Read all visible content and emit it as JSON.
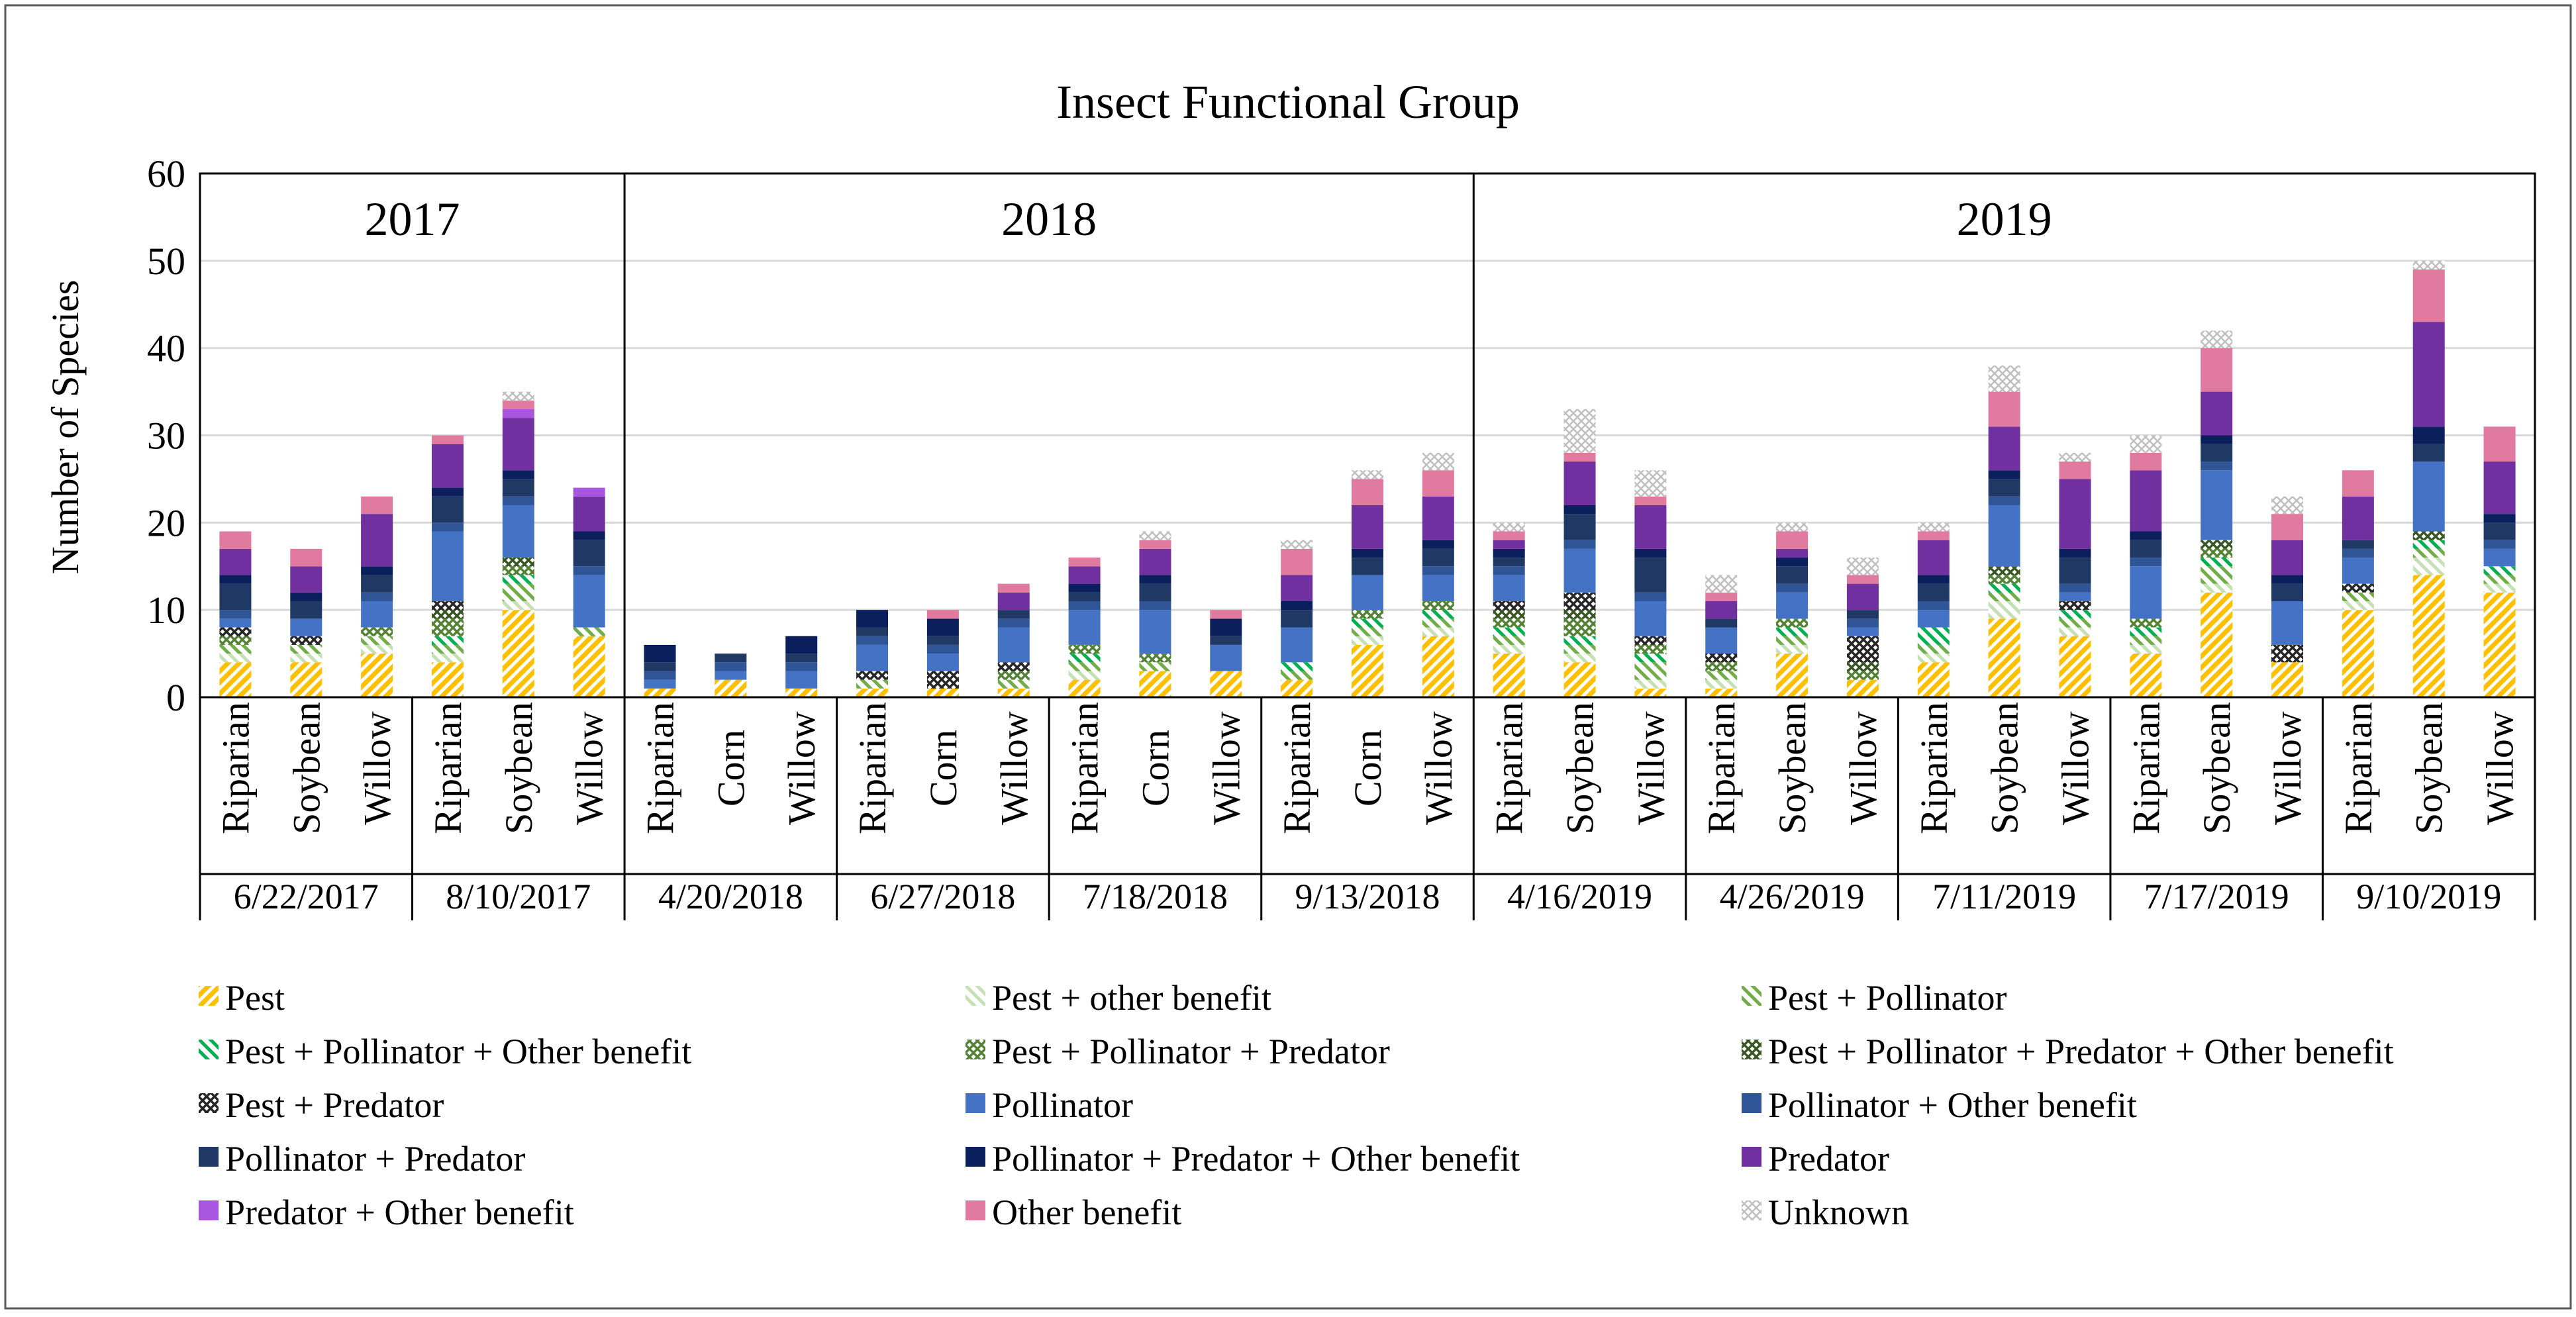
{
  "chart_data": {
    "type": "bar",
    "stacked": true,
    "title": "Insect Functional Group",
    "xlabel": "",
    "ylabel": "Number of Species",
    "ylim": [
      0,
      60
    ],
    "yticks": [
      0,
      10,
      20,
      30,
      40,
      50,
      60
    ],
    "years": [
      {
        "label": "2017",
        "first": 0,
        "last": 5
      },
      {
        "label": "2018",
        "first": 6,
        "last": 17
      },
      {
        "label": "2019",
        "first": 18,
        "last": 32
      }
    ],
    "dates": [
      {
        "label": "6/22/2017",
        "first": 0,
        "last": 2
      },
      {
        "label": "8/10/2017",
        "first": 3,
        "last": 5
      },
      {
        "label": "4/20/2018",
        "first": 6,
        "last": 8
      },
      {
        "label": "6/27/2018",
        "first": 9,
        "last": 11
      },
      {
        "label": "7/18/2018",
        "first": 12,
        "last": 14
      },
      {
        "label": "9/13/2018",
        "first": 15,
        "last": 17
      },
      {
        "label": "4/16/2019",
        "first": 18,
        "last": 20
      },
      {
        "label": "4/26/2019",
        "first": 21,
        "last": 23
      },
      {
        "label": "7/11/2019",
        "first": 24,
        "last": 26
      },
      {
        "label": "7/17/2019",
        "first": 27,
        "last": 29
      },
      {
        "label": "9/10/2019",
        "first": 30,
        "last": 32
      }
    ],
    "categories": [
      "Riparian",
      "Soybean",
      "Willow",
      "Riparian",
      "Soybean",
      "Willow",
      "Riparian",
      "Corn",
      "Willow",
      "Riparian",
      "Corn",
      "Willow",
      "Riparian",
      "Corn",
      "Willow",
      "Riparian",
      "Corn",
      "Willow",
      "Riparian",
      "Soybean",
      "Willow",
      "Riparian",
      "Soybean",
      "Willow",
      "Riparian",
      "Soybean",
      "Willow",
      "Riparian",
      "Soybean",
      "Willow",
      "Riparian",
      "Soybean",
      "Willow"
    ],
    "series": [
      {
        "name": "Pest",
        "color": "#FFC000",
        "pattern": "diag-wide",
        "values": [
          4,
          4,
          5,
          4,
          10,
          7,
          1,
          2,
          1,
          1,
          1,
          1,
          2,
          3,
          3,
          2,
          6,
          7,
          5,
          4,
          1,
          1,
          5,
          2,
          4,
          9,
          7,
          5,
          12,
          4,
          10,
          14,
          12
        ]
      },
      {
        "name": "Pest + other benefit",
        "color": "#C5E0B4",
        "pattern": "diag-fine",
        "values": [
          1,
          1,
          1,
          1,
          1,
          0,
          0,
          0,
          0,
          0,
          0,
          0,
          1,
          0,
          0,
          0,
          1,
          1,
          1,
          1,
          1,
          1,
          1,
          0,
          1,
          2,
          1,
          1,
          1,
          0,
          1,
          2,
          1
        ]
      },
      {
        "name": "Pest + Pollinator",
        "color": "#70AD47",
        "pattern": "diag-fine",
        "values": [
          1,
          1,
          1,
          1,
          2,
          1,
          0,
          0,
          0,
          1,
          0,
          1,
          1,
          1,
          0,
          1,
          1,
          1,
          1,
          1,
          2,
          1,
          1,
          0,
          1,
          1,
          1,
          1,
          2,
          0,
          1,
          1,
          1
        ]
      },
      {
        "name": "Pest + Pollinator + Other benefit",
        "color": "#00B050",
        "pattern": "diag-fine",
        "values": [
          0,
          0,
          0,
          1,
          1,
          0,
          0,
          0,
          0,
          0,
          0,
          0,
          1,
          0,
          0,
          1,
          1,
          1,
          1,
          1,
          1,
          0,
          1,
          0,
          2,
          1,
          1,
          1,
          1,
          0,
          0,
          1,
          1
        ]
      },
      {
        "name": "Pest + Pollinator + Predator",
        "color": "#548235",
        "pattern": "cross",
        "values": [
          1,
          0,
          1,
          2,
          1,
          0,
          0,
          0,
          0,
          0,
          0,
          1,
          1,
          1,
          0,
          0,
          1,
          1,
          1,
          2,
          1,
          1,
          1,
          1,
          0,
          1,
          0,
          1,
          1,
          0,
          0,
          0,
          0
        ]
      },
      {
        "name": "Pest + Pollinator + Predator + Other benefit",
        "color": "#375623",
        "pattern": "cross",
        "values": [
          0,
          0,
          0,
          1,
          1,
          0,
          0,
          0,
          0,
          0,
          0,
          0,
          0,
          0,
          0,
          0,
          0,
          0,
          1,
          1,
          0,
          0,
          0,
          1,
          0,
          1,
          0,
          0,
          1,
          0,
          0,
          1,
          0
        ]
      },
      {
        "name": "Pest + Predator",
        "color": "#262626",
        "pattern": "cross",
        "values": [
          1,
          1,
          0,
          1,
          0,
          0,
          0,
          0,
          0,
          1,
          2,
          1,
          0,
          0,
          0,
          0,
          0,
          0,
          1,
          2,
          1,
          1,
          0,
          3,
          0,
          0,
          1,
          0,
          0,
          2,
          1,
          0,
          0
        ]
      },
      {
        "name": "Pollinator",
        "color": "#4472C4",
        "pattern": "none",
        "values": [
          1,
          2,
          3,
          8,
          6,
          6,
          1,
          1,
          2,
          3,
          2,
          4,
          4,
          5,
          3,
          4,
          4,
          3,
          3,
          5,
          4,
          3,
          3,
          1,
          2,
          7,
          1,
          6,
          8,
          5,
          3,
          8,
          2
        ]
      },
      {
        "name": "Pollinator + Other benefit",
        "color": "#2F5597",
        "pattern": "none",
        "values": [
          1,
          0,
          1,
          1,
          1,
          1,
          1,
          1,
          1,
          1,
          1,
          1,
          1,
          1,
          0,
          0,
          0,
          1,
          1,
          1,
          1,
          0,
          1,
          1,
          1,
          1,
          1,
          1,
          1,
          0,
          1,
          0,
          1
        ]
      },
      {
        "name": "Pollinator + Predator",
        "color": "#203864",
        "pattern": "none",
        "values": [
          3,
          2,
          2,
          3,
          2,
          3,
          1,
          1,
          1,
          1,
          1,
          1,
          1,
          2,
          1,
          2,
          2,
          2,
          1,
          3,
          4,
          1,
          2,
          1,
          2,
          2,
          3,
          2,
          2,
          2,
          1,
          2,
          2
        ]
      },
      {
        "name": "Pollinator + Predator + Other benefit",
        "color": "#0A1F5C",
        "pattern": "none",
        "values": [
          1,
          1,
          1,
          1,
          1,
          1,
          2,
          0,
          2,
          2,
          2,
          0,
          1,
          1,
          2,
          1,
          1,
          1,
          1,
          1,
          1,
          0,
          1,
          0,
          1,
          1,
          1,
          1,
          1,
          1,
          0,
          2,
          1
        ]
      },
      {
        "name": "Predator",
        "color": "#7030A0",
        "pattern": "none",
        "values": [
          3,
          3,
          6,
          5,
          6,
          4,
          0,
          0,
          0,
          0,
          0,
          2,
          2,
          3,
          0,
          3,
          5,
          5,
          1,
          5,
          5,
          2,
          1,
          3,
          4,
          5,
          8,
          7,
          5,
          4,
          5,
          12,
          6
        ]
      },
      {
        "name": "Predator + Other benefit",
        "color": "#A855E0",
        "pattern": "none",
        "values": [
          0,
          0,
          0,
          0,
          1,
          1,
          0,
          0,
          0,
          0,
          0,
          0,
          0,
          0,
          0,
          0,
          0,
          0,
          0,
          0,
          0,
          0,
          0,
          0,
          0,
          0,
          0,
          0,
          0,
          0,
          0,
          0,
          0
        ]
      },
      {
        "name": "Other benefit",
        "color": "#E07A9F",
        "pattern": "none",
        "values": [
          2,
          2,
          2,
          1,
          1,
          0,
          0,
          0,
          0,
          0,
          1,
          1,
          1,
          1,
          1,
          3,
          3,
          3,
          1,
          1,
          1,
          1,
          2,
          1,
          1,
          4,
          2,
          2,
          5,
          3,
          3,
          6,
          4
        ]
      },
      {
        "name": "Unknown",
        "color": "#BFBFBF",
        "pattern": "cross-light",
        "values": [
          0,
          0,
          0,
          0,
          1,
          0,
          0,
          0,
          0,
          0,
          0,
          0,
          0,
          1,
          0,
          1,
          1,
          2,
          1,
          5,
          3,
          2,
          1,
          2,
          1,
          3,
          1,
          2,
          2,
          2,
          0,
          1,
          0
        ]
      }
    ],
    "legend": "bottom"
  }
}
